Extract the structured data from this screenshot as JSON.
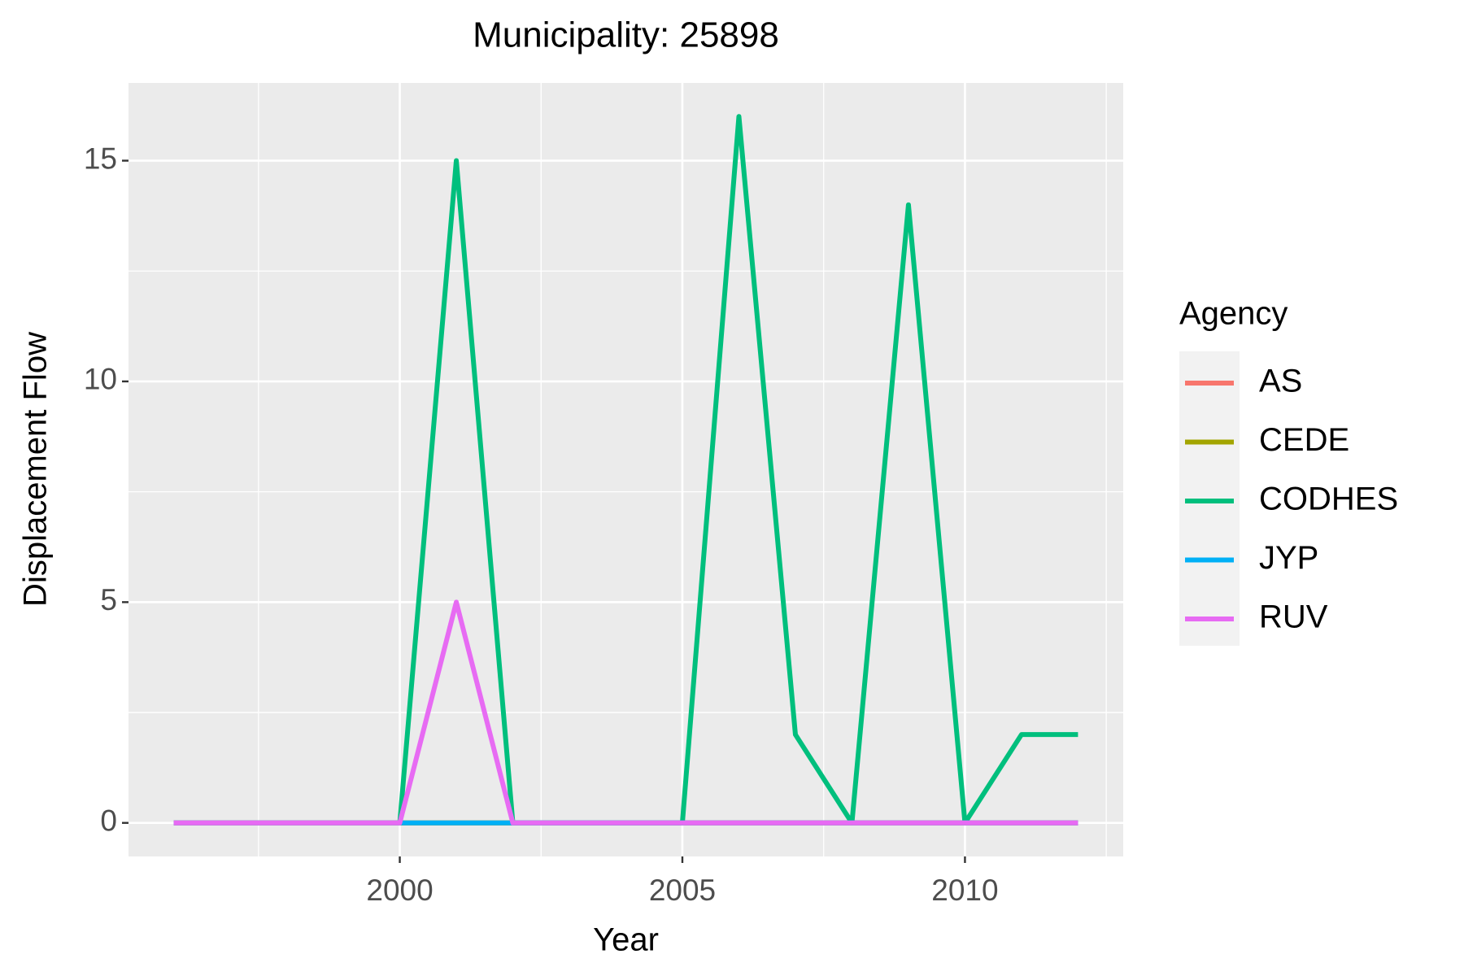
{
  "chart_data": {
    "type": "line",
    "title": "Municipality: 25898",
    "x_label": "Year",
    "y_label": "Displacement Flow",
    "legend_title": "Agency",
    "x": [
      1996,
      1997,
      1998,
      1999,
      2000,
      2001,
      2002,
      2003,
      2004,
      2005,
      2006,
      2007,
      2008,
      2009,
      2010,
      2011,
      2012
    ],
    "series": [
      {
        "name": "AS",
        "color": "#f8766d",
        "values": [
          0,
          0,
          0,
          0,
          0,
          0,
          0,
          0,
          0,
          0,
          0,
          0,
          0,
          0,
          0,
          0,
          0
        ]
      },
      {
        "name": "CEDE",
        "color": "#a3a500",
        "values": [
          0,
          0,
          0,
          0,
          0,
          0,
          0,
          0,
          0,
          0,
          0,
          0,
          0,
          0,
          0,
          0,
          0
        ]
      },
      {
        "name": "CODHES",
        "color": "#00bf7d",
        "values": [
          null,
          null,
          null,
          null,
          0,
          15,
          0,
          0,
          0,
          0,
          16,
          2,
          0,
          14,
          0,
          2,
          2
        ]
      },
      {
        "name": "JYP",
        "color": "#00b0f6",
        "values": [
          0,
          0,
          0,
          0,
          0,
          0,
          0,
          0,
          0,
          0,
          0,
          0,
          0,
          0,
          0,
          0,
          0
        ]
      },
      {
        "name": "RUV",
        "color": "#e76bf3",
        "values": [
          0,
          0,
          0,
          0,
          0,
          5,
          0,
          0,
          0,
          0,
          0,
          0,
          0,
          0,
          0,
          0,
          0
        ]
      }
    ],
    "xlim": [
      1995.2,
      2012.8
    ],
    "xticks": [
      2000,
      2005,
      2010
    ],
    "xminor": [
      1997.5,
      2002.5,
      2007.5,
      2012.5
    ],
    "ylim": [
      -0.76,
      16.76
    ],
    "yticks": [
      0,
      5,
      10,
      15
    ],
    "yminor": [
      2.5,
      7.5,
      12.5
    ],
    "grid": true,
    "legend": "right"
  }
}
